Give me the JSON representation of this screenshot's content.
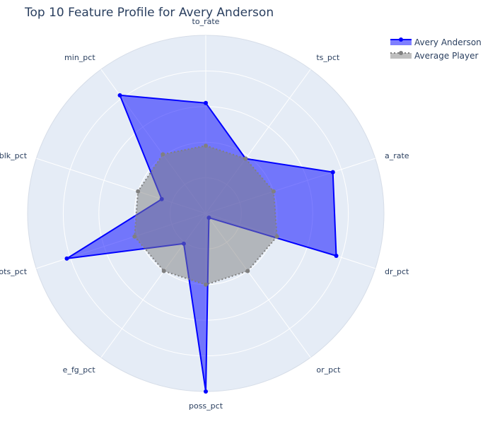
{
  "chart_data": {
    "type": "radar",
    "title": "Top 10 Feature Profile for Avery Anderson",
    "categories": [
      "to_rate",
      "ts_pct",
      "a_rate",
      "dr_pct",
      "or_pct",
      "poss_pct",
      "e_fg_pct",
      "shots_pct",
      "blk_pct",
      "min_pct"
    ],
    "radial_range": [
      0,
      1
    ],
    "grid": true,
    "legend_position": "top-right",
    "series": [
      {
        "name": "Avery Anderson",
        "color": "#0000ff",
        "fill_color": "rgba(0,0,255,0.5)",
        "line_style": "solid",
        "values": [
          0.62,
          0.38,
          0.75,
          0.77,
          0.03,
          1.0,
          0.21,
          0.82,
          0.26,
          0.82
        ]
      },
      {
        "name": "Average Player",
        "color": "#808080",
        "fill_color": "rgba(128,128,128,0.5)",
        "line_style": "dotted",
        "values": [
          0.38,
          0.38,
          0.4,
          0.42,
          0.4,
          0.4,
          0.4,
          0.42,
          0.4,
          0.41
        ]
      }
    ]
  },
  "colors": {
    "plot_bg": "#e5ecf6",
    "grid": "#ffffff",
    "text": "#2a3f5f"
  }
}
